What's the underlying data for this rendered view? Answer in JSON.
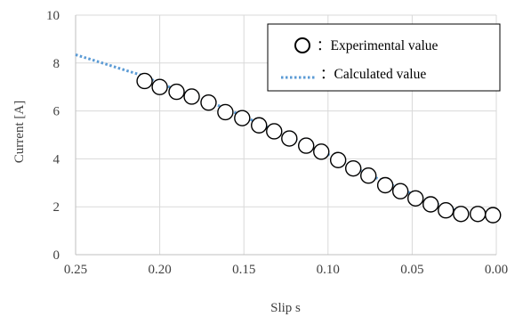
{
  "chart_data": {
    "type": "scatter",
    "xlabel": "Slip s",
    "ylabel": "Current  [A]",
    "xlim": [
      0.25,
      0.0
    ],
    "ylim": [
      0,
      10
    ],
    "x_reversed": true,
    "xticks": [
      "0.25",
      "0.20",
      "0.15",
      "0.10",
      "0.05",
      "0.00"
    ],
    "yticks": [
      "0",
      "2",
      "4",
      "6",
      "8",
      "10"
    ],
    "grid": true,
    "legend_position": "top-right",
    "series": [
      {
        "name": "Experimental value",
        "marker": "open-circle",
        "color": "#000000",
        "x": [
          0.209,
          0.2,
          0.19,
          0.181,
          0.171,
          0.161,
          0.151,
          0.141,
          0.132,
          0.123,
          0.113,
          0.104,
          0.094,
          0.085,
          0.076,
          0.066,
          0.057,
          0.048,
          0.039,
          0.03,
          0.021,
          0.011,
          0.002
        ],
        "y": [
          7.25,
          7.0,
          6.8,
          6.6,
          6.35,
          5.95,
          5.7,
          5.4,
          5.15,
          4.85,
          4.55,
          4.3,
          3.95,
          3.6,
          3.3,
          2.9,
          2.65,
          2.35,
          2.1,
          1.85,
          1.7,
          1.7,
          1.65
        ]
      },
      {
        "name": "Calculated value",
        "style": "dotted-line",
        "color": "#5b9bd5",
        "x": [
          0.25,
          0.209,
          0.2,
          0.171,
          0.151,
          0.132,
          0.113,
          0.094,
          0.076,
          0.057,
          0.039,
          0.021,
          0.0
        ],
        "y": [
          8.35,
          7.45,
          7.15,
          6.4,
          5.8,
          5.2,
          4.6,
          4.0,
          3.35,
          2.75,
          2.2,
          1.8,
          1.6
        ]
      }
    ]
  },
  "legend": {
    "experimental_label": "：Experimental value",
    "calculated_label": "：Calculated value"
  }
}
